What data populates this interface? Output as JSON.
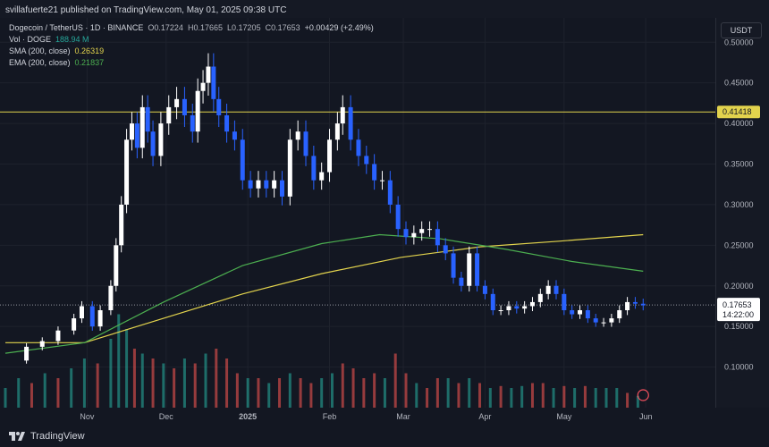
{
  "publisher_line": "svillafuerte21 published on TradingView.com, May 01, 2025 09:38 UTC",
  "legend": {
    "symbol": "Dogecoin / TetherUS · 1D · BINANCE",
    "ohlc_open": "O0.17224",
    "ohlc_high": "H0.17665",
    "ohlc_low": "L0.17205",
    "ohlc_close": "C0.17653",
    "change": "+0.00429 (+2.49%)",
    "vol_label": "Vol · DOGE",
    "vol_value": "188.94 M",
    "sma_label": "SMA (200, close)",
    "sma_value": "0.26319",
    "ema_label": "EMA (200, close)",
    "ema_value": "0.21837"
  },
  "currency_button": "USDT",
  "brand": "TradingView",
  "colors": {
    "background": "#131722",
    "up": "#ffffff",
    "down": "#2962ff",
    "vol_up": "#26a69a",
    "vol_down": "#ef5350",
    "sma": "#e2d34d",
    "ema": "#4caf50",
    "hline": "#e2d34d"
  },
  "chart_data": {
    "type": "candlestick",
    "price_range": [
      0.05,
      0.53
    ],
    "y_ticks": [
      "0.50000",
      "0.45000",
      "0.40000",
      "0.35000",
      "0.30000",
      "0.25000",
      "0.20000",
      "0.15000",
      "0.10000"
    ],
    "y_tick_values": [
      0.5,
      0.45,
      0.4,
      0.35,
      0.3,
      0.25,
      0.2,
      0.15,
      0.1
    ],
    "x_ticks": [
      "Nov",
      "Dec",
      "2025",
      "Feb",
      "Mar",
      "Apr",
      "May",
      "Jun"
    ],
    "x_tick_days": [
      31,
      61,
      92,
      123,
      151,
      182,
      212,
      243
    ],
    "x_range_days": [
      0,
      266
    ],
    "horizontal_line": {
      "value": 0.41418,
      "label": "0.41418"
    },
    "last_price": {
      "value": 0.17653,
      "label": "0.17653",
      "countdown": "14:22:00"
    },
    "closes": [
      [
        0,
        0.108
      ],
      [
        8,
        0.125
      ],
      [
        14,
        0.132
      ],
      [
        20,
        0.145
      ],
      [
        26,
        0.16
      ],
      [
        29,
        0.175
      ],
      [
        33,
        0.15
      ],
      [
        36,
        0.17
      ],
      [
        40,
        0.2
      ],
      [
        42,
        0.25
      ],
      [
        44,
        0.3
      ],
      [
        46,
        0.38
      ],
      [
        48,
        0.4
      ],
      [
        50,
        0.37
      ],
      [
        52,
        0.42
      ],
      [
        54,
        0.39
      ],
      [
        56,
        0.36
      ],
      [
        59,
        0.4
      ],
      [
        62,
        0.42
      ],
      [
        65,
        0.43
      ],
      [
        68,
        0.41
      ],
      [
        71,
        0.39
      ],
      [
        73,
        0.44
      ],
      [
        75,
        0.45
      ],
      [
        77,
        0.47
      ],
      [
        79,
        0.43
      ],
      [
        81,
        0.41
      ],
      [
        84,
        0.39
      ],
      [
        87,
        0.38
      ],
      [
        90,
        0.33
      ],
      [
        93,
        0.32
      ],
      [
        96,
        0.33
      ],
      [
        99,
        0.32
      ],
      [
        102,
        0.33
      ],
      [
        105,
        0.31
      ],
      [
        108,
        0.38
      ],
      [
        111,
        0.39
      ],
      [
        114,
        0.36
      ],
      [
        117,
        0.33
      ],
      [
        120,
        0.34
      ],
      [
        123,
        0.38
      ],
      [
        126,
        0.4
      ],
      [
        128,
        0.42
      ],
      [
        131,
        0.38
      ],
      [
        134,
        0.36
      ],
      [
        137,
        0.35
      ],
      [
        140,
        0.33
      ],
      [
        143,
        0.33
      ],
      [
        146,
        0.3
      ],
      [
        149,
        0.27
      ],
      [
        152,
        0.26
      ],
      [
        155,
        0.265
      ],
      [
        158,
        0.27
      ],
      [
        161,
        0.27
      ],
      [
        164,
        0.25
      ],
      [
        167,
        0.24
      ],
      [
        170,
        0.21
      ],
      [
        173,
        0.2
      ],
      [
        176,
        0.24
      ],
      [
        179,
        0.2
      ],
      [
        182,
        0.19
      ],
      [
        185,
        0.17
      ],
      [
        188,
        0.17
      ],
      [
        191,
        0.175
      ],
      [
        194,
        0.172
      ],
      [
        197,
        0.175
      ],
      [
        200,
        0.18
      ],
      [
        203,
        0.19
      ],
      [
        206,
        0.2
      ],
      [
        209,
        0.19
      ],
      [
        212,
        0.17
      ],
      [
        215,
        0.165
      ],
      [
        218,
        0.17
      ],
      [
        221,
        0.16
      ],
      [
        224,
        0.155
      ],
      [
        227,
        0.155
      ],
      [
        230,
        0.16
      ],
      [
        233,
        0.17
      ],
      [
        236,
        0.18
      ],
      [
        239,
        0.178
      ],
      [
        242,
        0.176
      ]
    ],
    "series": [
      {
        "name": "SMA (200, close)",
        "values": [
          [
            0,
            0.13
          ],
          [
            30,
            0.13
          ],
          [
            60,
            0.16
          ],
          [
            90,
            0.19
          ],
          [
            120,
            0.215
          ],
          [
            150,
            0.235
          ],
          [
            180,
            0.248
          ],
          [
            210,
            0.255
          ],
          [
            242,
            0.263
          ]
        ]
      },
      {
        "name": "EMA (200, close)",
        "values": [
          [
            0,
            0.117
          ],
          [
            30,
            0.13
          ],
          [
            60,
            0.18
          ],
          [
            90,
            0.225
          ],
          [
            120,
            0.252
          ],
          [
            142,
            0.263
          ],
          [
            165,
            0.258
          ],
          [
            190,
            0.245
          ],
          [
            215,
            0.23
          ],
          [
            242,
            0.218
          ]
        ]
      }
    ],
    "volume_bars": [
      [
        0,
        0.2,
        1
      ],
      [
        5,
        0.3,
        1
      ],
      [
        10,
        0.25,
        0
      ],
      [
        15,
        0.35,
        1
      ],
      [
        20,
        0.3,
        0
      ],
      [
        25,
        0.4,
        1
      ],
      [
        30,
        0.5,
        1
      ],
      [
        35,
        0.45,
        0
      ],
      [
        40,
        0.7,
        1
      ],
      [
        43,
        0.95,
        1
      ],
      [
        46,
        0.8,
        1
      ],
      [
        49,
        0.6,
        0
      ],
      [
        52,
        0.55,
        1
      ],
      [
        56,
        0.5,
        0
      ],
      [
        60,
        0.45,
        1
      ],
      [
        64,
        0.4,
        0
      ],
      [
        68,
        0.5,
        1
      ],
      [
        72,
        0.45,
        0
      ],
      [
        76,
        0.55,
        1
      ],
      [
        80,
        0.6,
        0
      ],
      [
        84,
        0.5,
        0
      ],
      [
        88,
        0.35,
        0
      ],
      [
        92,
        0.3,
        1
      ],
      [
        96,
        0.3,
        0
      ],
      [
        100,
        0.25,
        1
      ],
      [
        104,
        0.3,
        0
      ],
      [
        108,
        0.35,
        1
      ],
      [
        112,
        0.3,
        0
      ],
      [
        116,
        0.25,
        0
      ],
      [
        120,
        0.3,
        1
      ],
      [
        124,
        0.35,
        1
      ],
      [
        128,
        0.45,
        0
      ],
      [
        132,
        0.4,
        0
      ],
      [
        136,
        0.3,
        0
      ],
      [
        140,
        0.35,
        0
      ],
      [
        144,
        0.3,
        1
      ],
      [
        148,
        0.55,
        0
      ],
      [
        152,
        0.35,
        0
      ],
      [
        156,
        0.25,
        1
      ],
      [
        160,
        0.2,
        0
      ],
      [
        164,
        0.3,
        0
      ],
      [
        168,
        0.3,
        1
      ],
      [
        172,
        0.25,
        0
      ],
      [
        176,
        0.3,
        1
      ],
      [
        180,
        0.25,
        0
      ],
      [
        184,
        0.2,
        1
      ],
      [
        188,
        0.22,
        0
      ],
      [
        192,
        0.2,
        1
      ],
      [
        196,
        0.22,
        1
      ],
      [
        200,
        0.25,
        0
      ],
      [
        204,
        0.25,
        0
      ],
      [
        208,
        0.2,
        1
      ],
      [
        212,
        0.22,
        0
      ],
      [
        216,
        0.2,
        1
      ],
      [
        220,
        0.22,
        0
      ],
      [
        224,
        0.2,
        1
      ],
      [
        228,
        0.2,
        1
      ],
      [
        232,
        0.2,
        1
      ],
      [
        236,
        0.15,
        0
      ],
      [
        240,
        0.12,
        1
      ]
    ]
  }
}
